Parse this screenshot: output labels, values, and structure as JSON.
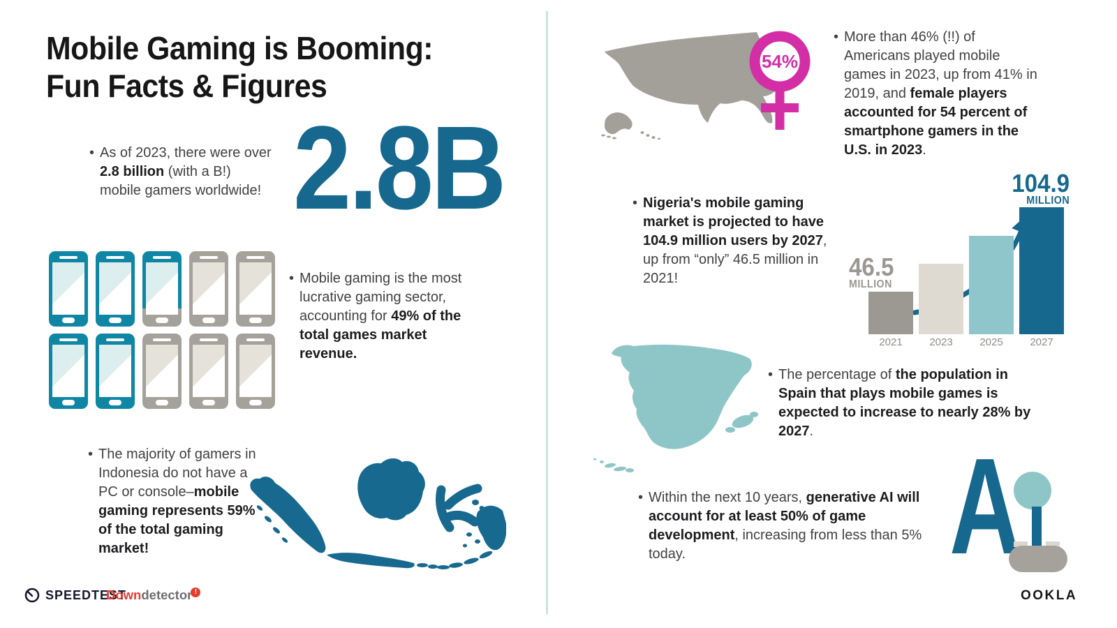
{
  "title": {
    "line1": "Mobile Gaming is Booming:",
    "line2": "Fun Facts & Figures"
  },
  "big_stat": {
    "value": "2.8B"
  },
  "facts": {
    "gamers": {
      "s1": "As of 2023, there were over ",
      "s2": "2.8 billion",
      "s3": " (with a B!) mobile gamers worldwide!"
    },
    "revenue": {
      "s1": "Mobile gaming is the most lucrative gaming sector, accounting for ",
      "s2": "49% of the total games market revenue."
    },
    "indonesia": {
      "s1": "The majority of gamers in Indonesia do not have a PC or console–",
      "s2": "mobile gaming represents 59% of the total gaming market!"
    },
    "usa": {
      "s1": "More than 46% (!!) of Americans played mobile games in 2023, up from 41% in 2019, and ",
      "s2": "female players accounted for 54 percent of smartphone gamers in the U.S. in 2023",
      "s3": "."
    },
    "nigeria": {
      "s1": "Nigeria's mobile gaming market is projected to have 104.9 million users by 2027",
      "s2": ", up from “only” 46.5 million in 2021!"
    },
    "spain": {
      "s1": "The percentage of ",
      "s2": "the population in Spain that plays mobile games is expected to increase to nearly 28% by 2027",
      "s3": "."
    },
    "ai": {
      "s1": "Within the next 10 years, ",
      "s2": "generative AI will account for at least 50% of game development",
      "s3": ", increasing from less than 5% today."
    }
  },
  "female_badge": {
    "value": "54%"
  },
  "phones": {
    "statuses": [
      "teal",
      "teal",
      "split",
      "gray",
      "gray",
      "teal",
      "teal",
      "gray",
      "gray",
      "gray"
    ]
  },
  "ai_graphic": {
    "letter": "A"
  },
  "maps": {
    "usa": "United States silhouette",
    "indonesia": "Indonesia archipelago silhouette",
    "spain": "Spain silhouette"
  },
  "icons": {
    "female": "female-gender-symbol",
    "speedtest_gauge": "speedometer-gauge-icon",
    "downdetector_badge": "exclamation-badge-icon"
  },
  "chart_data": {
    "type": "bar",
    "categories": [
      "2021",
      "2023",
      "2025",
      "2027"
    ],
    "values": [
      46.5,
      66,
      85,
      104.9
    ],
    "note": "2023 and 2025 bars are unlabeled in the figure; values estimated from bar heights",
    "unit": "MILLION",
    "start_label": {
      "number": "46.5",
      "unit": "MILLION"
    },
    "end_label": {
      "number": "104.9",
      "unit": "MILLION"
    },
    "bar_colors": [
      "#9c9892",
      "#dedad1",
      "#8ec6cb",
      "#16688e"
    ],
    "ylim": [
      0,
      110
    ],
    "grid": false,
    "legend": false,
    "annotation": "curved arrow from 2021 value up to 2027 bar"
  },
  "footer": {
    "speedtest": "SPEEDTEST",
    "downdetector": {
      "down": "Down",
      "detector": "detector",
      "badge": "!"
    },
    "ookla": "OOKLA"
  },
  "colors": {
    "dark_teal": "#16688e",
    "phone_teal": "#0e86a4",
    "light_teal": "#8ec6c8",
    "cream": "#dedad1",
    "gray": "#a5a19b",
    "bar_gray": "#9c9892",
    "pink": "#d32ea6",
    "divider": "#cfe0e3",
    "speedtest_navy": "#15152f",
    "down_red": "#e63b2e",
    "detector_gray": "#6e6e6e"
  }
}
